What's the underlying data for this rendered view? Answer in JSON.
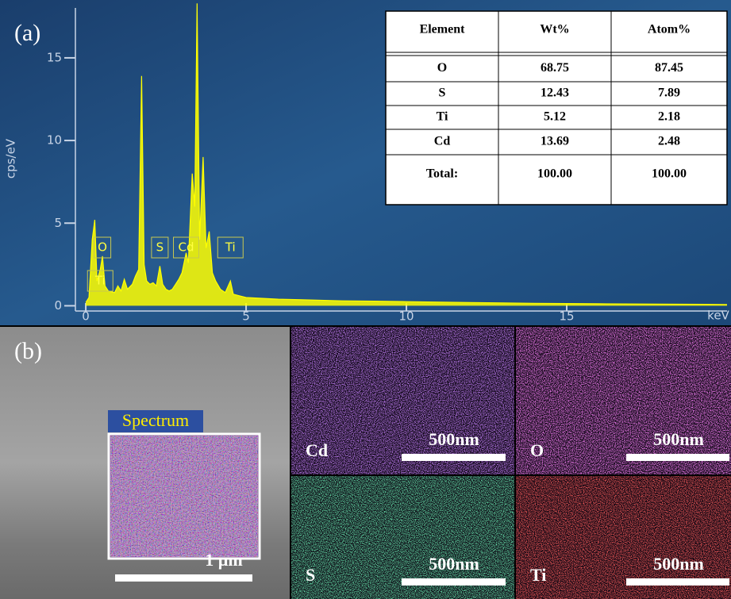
{
  "chart_data": {
    "type": "line",
    "panel_label": "(a)",
    "ylabel": "cps/eV",
    "xlabel": "keV",
    "color": "#ffff00",
    "x": [
      0.0,
      0.1,
      0.2,
      0.28,
      0.35,
      0.45,
      0.52,
      0.6,
      0.7,
      0.9,
      1.0,
      1.1,
      1.2,
      1.3,
      1.45,
      1.55,
      1.65,
      1.74,
      1.82,
      1.9,
      2.0,
      2.1,
      2.2,
      2.31,
      2.4,
      2.5,
      2.6,
      2.7,
      2.8,
      2.9,
      3.0,
      3.13,
      3.2,
      3.32,
      3.4,
      3.47,
      3.55,
      3.66,
      3.75,
      3.85,
      3.95,
      4.05,
      4.2,
      4.35,
      4.51,
      4.6,
      4.8,
      5,
      6,
      7,
      8,
      9,
      10,
      12,
      14,
      16,
      18,
      20
    ],
    "values": [
      0.2,
      0.5,
      4.0,
      5.2,
      1.5,
      2.2,
      3.0,
      1.2,
      0.9,
      0.8,
      1.2,
      0.9,
      1.6,
      1.0,
      1.3,
      1.8,
      2.2,
      13.9,
      2.5,
      1.5,
      1.3,
      1.4,
      1.2,
      2.4,
      1.3,
      1.0,
      0.9,
      1.0,
      1.3,
      1.6,
      2.0,
      3.2,
      2.6,
      8.0,
      6.0,
      18.3,
      4.0,
      9.0,
      3.5,
      4.5,
      2.0,
      1.5,
      1.0,
      0.8,
      1.5,
      0.7,
      0.6,
      0.5,
      0.4,
      0.35,
      0.3,
      0.28,
      0.25,
      0.2,
      0.15,
      0.12,
      0.1,
      0.08
    ],
    "xlim": [
      -0.2,
      20.0
    ],
    "ylim": [
      -0.7,
      18.5
    ],
    "xticks": [
      0,
      5,
      10,
      15
    ],
    "yticks": [
      0,
      5,
      10,
      15
    ],
    "annotations": [
      {
        "text": "O",
        "x": 0.52
      },
      {
        "text": "Ti",
        "x": 0.45
      },
      {
        "text": "S",
        "x": 2.31
      },
      {
        "text": "Cd",
        "x": 3.13
      },
      {
        "text": "Ti",
        "x": 4.51
      }
    ]
  },
  "table": {
    "header": [
      "Element",
      "Wt%",
      "Atom%"
    ],
    "rows": [
      [
        "O",
        "68.75",
        "87.45"
      ],
      [
        "S",
        "12.43",
        "7.89"
      ],
      [
        "Ti",
        "5.12",
        "2.18"
      ],
      [
        "Cd",
        "13.69",
        "2.48"
      ],
      [
        "Total:",
        "100.00",
        "100.00"
      ]
    ]
  },
  "sem": {
    "panel_label": "(b)",
    "box_label": "Spectrum",
    "scale_label": "1 µm"
  },
  "maps": [
    {
      "element": "Cd",
      "scale_label": "500nm",
      "color": "#7a2fd0"
    },
    {
      "element": "O",
      "scale_label": "500nm",
      "color": "#d030d0"
    },
    {
      "element": "S",
      "scale_label": "500nm",
      "color": "#20b060"
    },
    {
      "element": "Ti",
      "scale_label": "500nm",
      "color": "#d01818"
    }
  ]
}
